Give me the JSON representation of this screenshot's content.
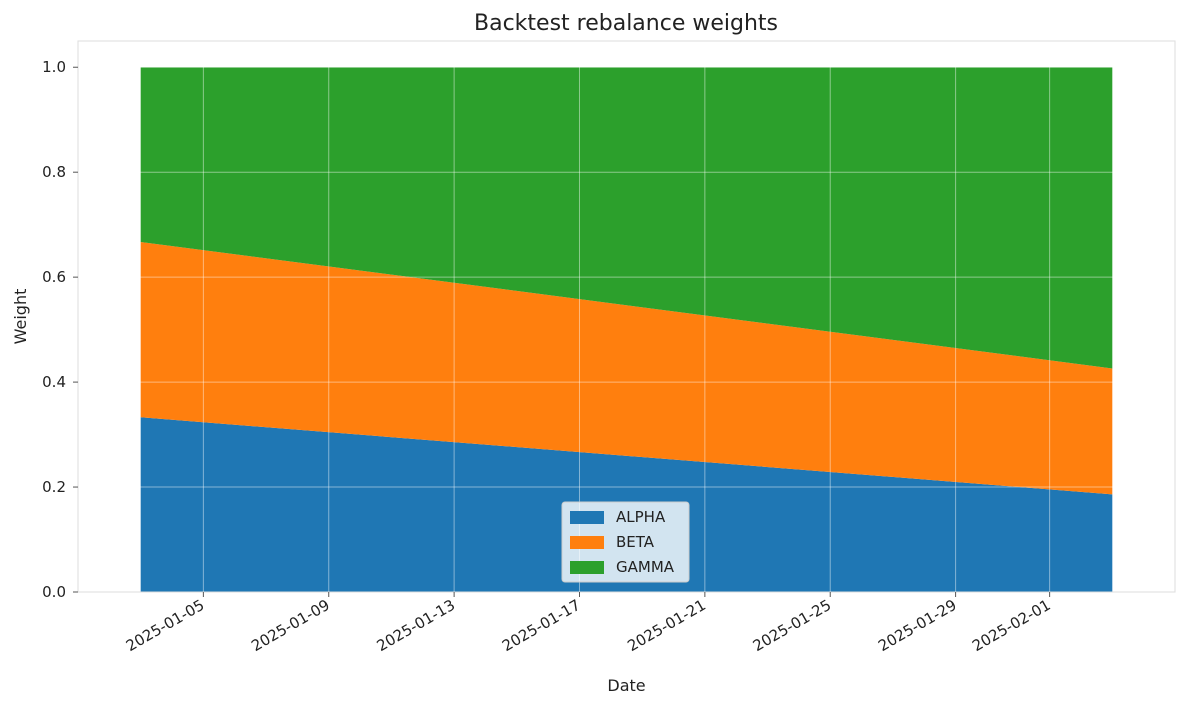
{
  "chart_data": {
    "type": "area",
    "stacked": true,
    "title": "Backtest rebalance weights",
    "xlabel": "Date",
    "ylabel": "Weight",
    "x": [
      "2025-01-03",
      "2025-02-03"
    ],
    "series": [
      {
        "name": "ALPHA",
        "color": "#1f77b4",
        "values": [
          0.333,
          0.186
        ]
      },
      {
        "name": "BETA",
        "color": "#ff7f0e",
        "values": [
          0.334,
          0.24
        ]
      },
      {
        "name": "GAMMA",
        "color": "#2ca02c",
        "values": [
          0.333,
          0.574
        ]
      }
    ],
    "xlim": [
      "2025-01-01",
      "2025-02-05"
    ],
    "ylim": [
      0,
      1.05
    ],
    "x_ticks": [
      "2025-01-05",
      "2025-01-09",
      "2025-01-13",
      "2025-01-17",
      "2025-01-21",
      "2025-01-25",
      "2025-01-29",
      "2025-02-01"
    ],
    "y_ticks": [
      0.0,
      0.2,
      0.4,
      0.6,
      0.8,
      1.0
    ],
    "y_tick_labels": [
      "0.0",
      "0.2",
      "0.4",
      "0.6",
      "0.8",
      "1.0"
    ],
    "grid": true,
    "legend_position": "bottom-center",
    "frame_color": "#dddddd",
    "grid_color": "#e5e5e5"
  }
}
